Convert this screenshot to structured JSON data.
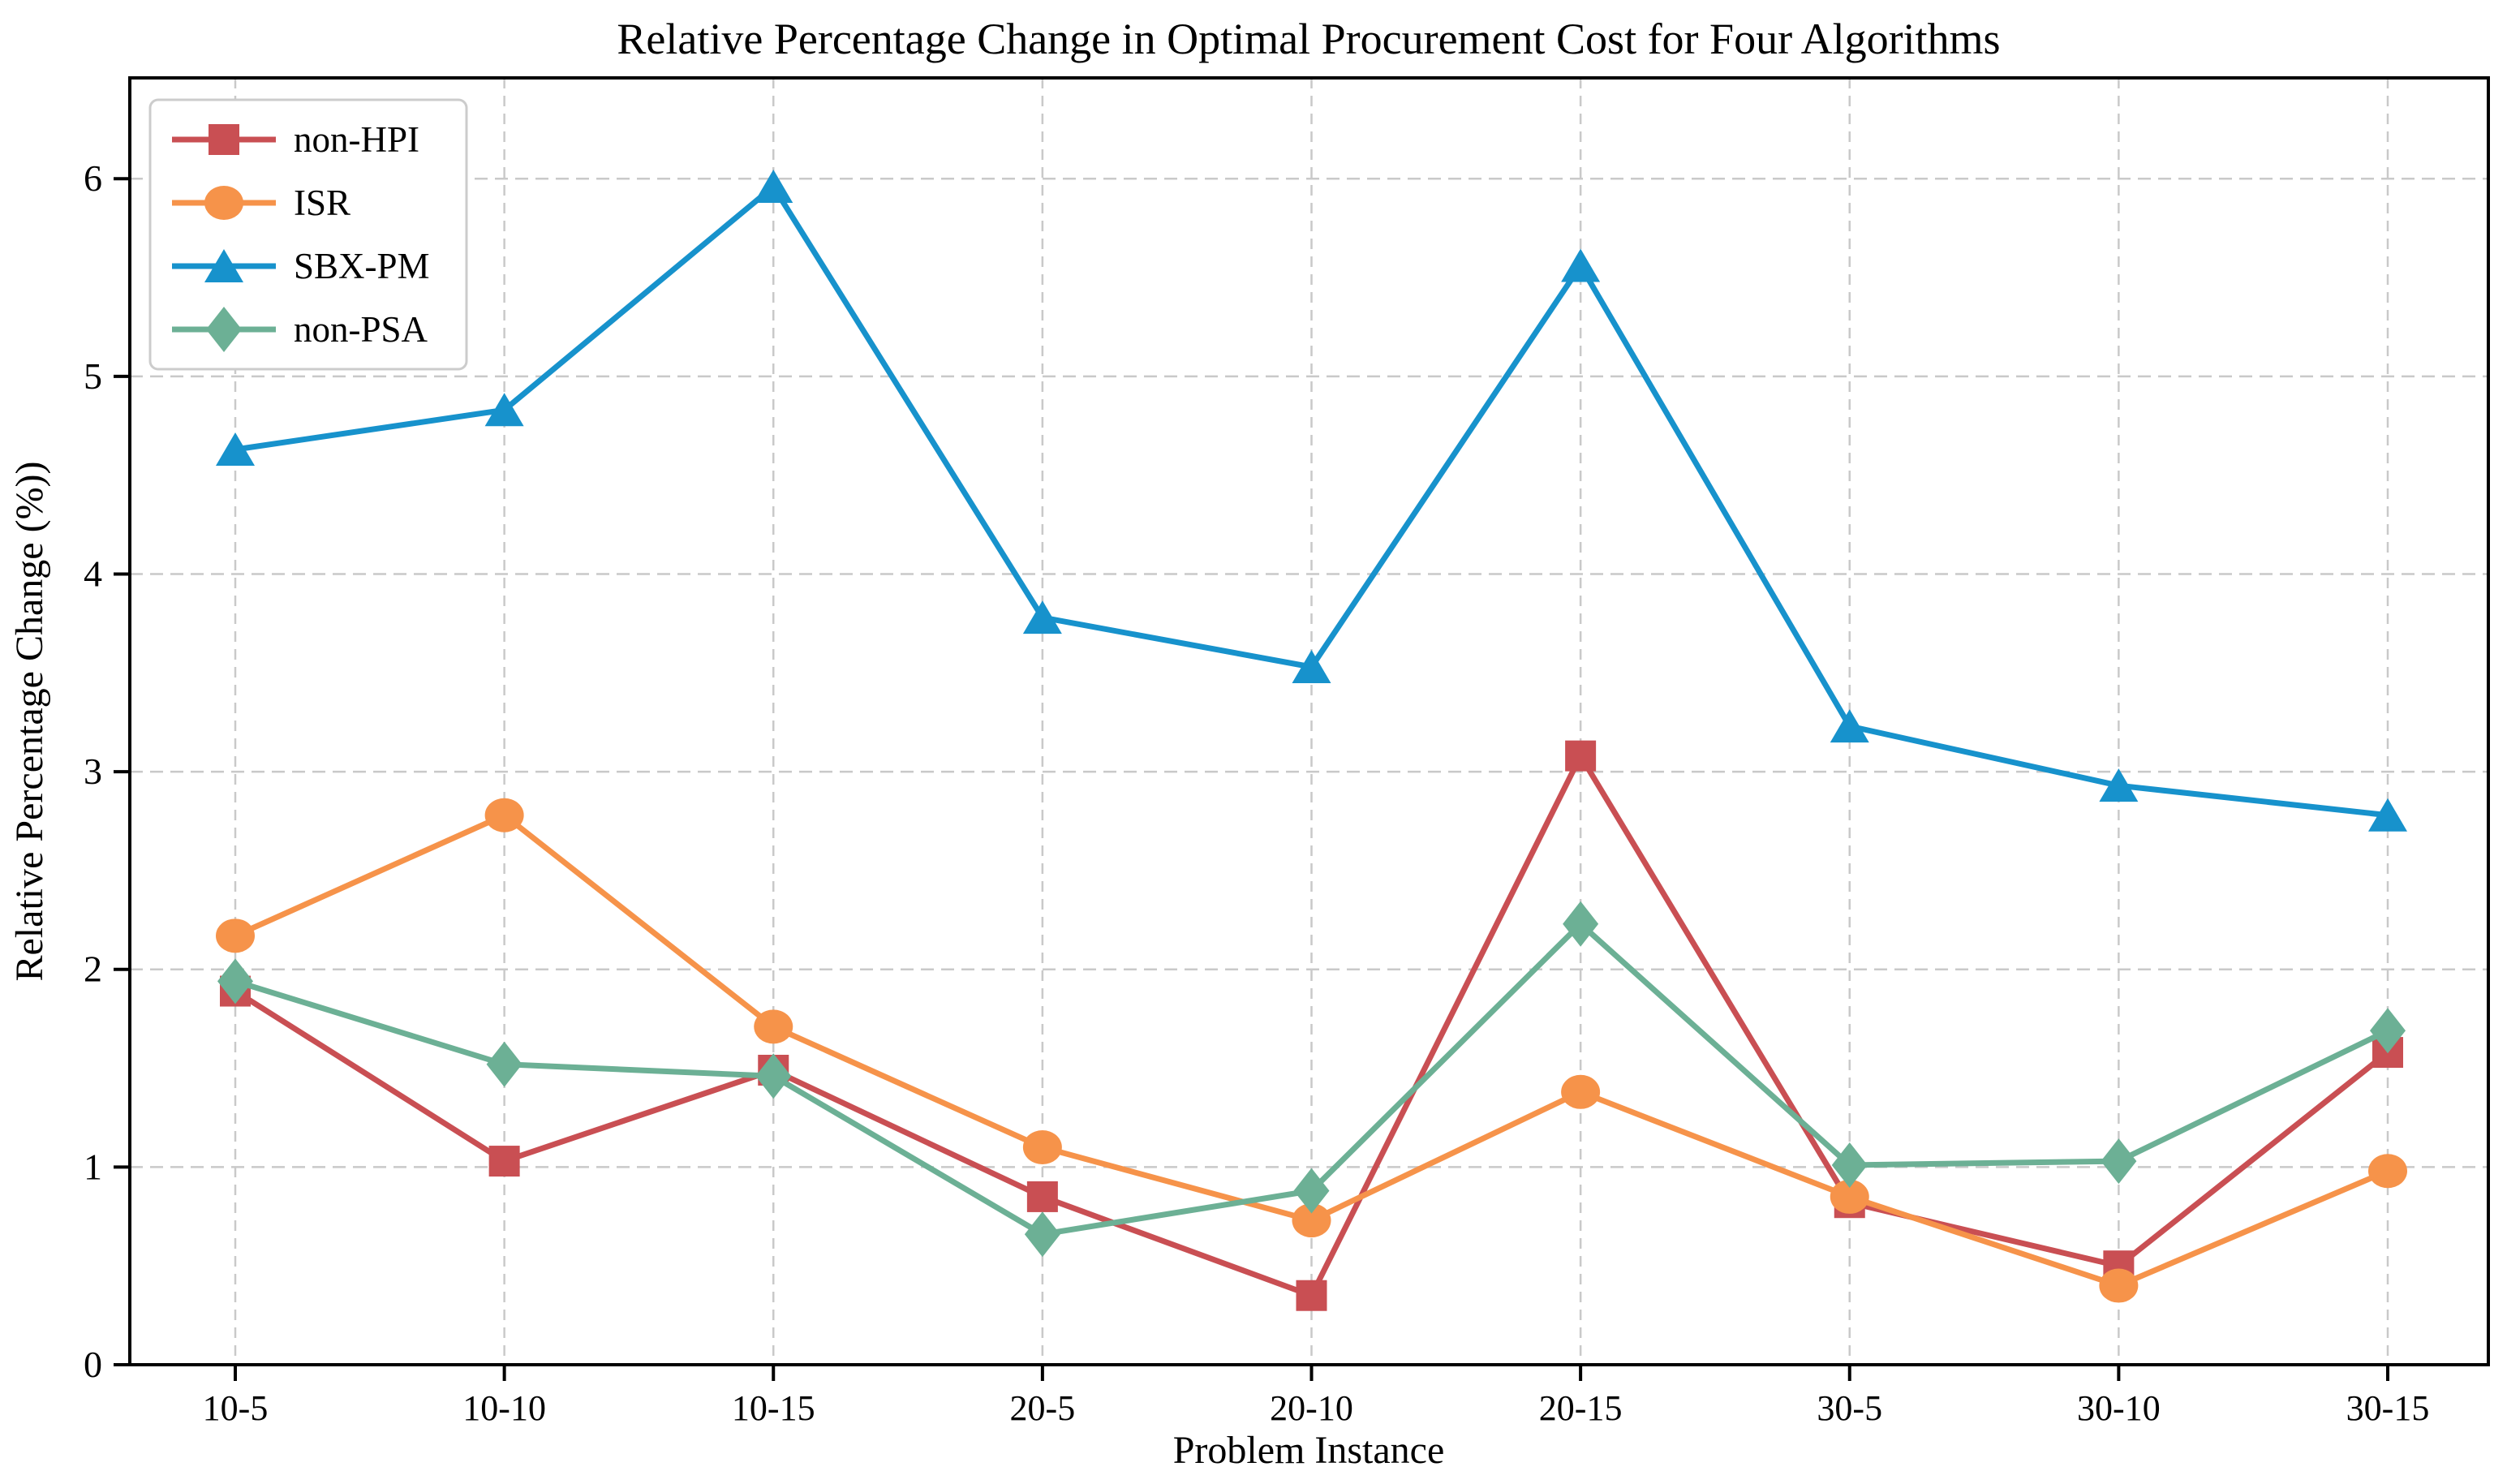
{
  "title": "Relative Percentage Change in Optimal Procurement Cost for Four Algorithms",
  "chart_data": {
    "type": "line",
    "title": "Relative Percentage Change in Optimal Procurement Cost for Four Algorithms",
    "xlabel": "Problem Instance",
    "ylabel": "Relative Percentage Change (%))",
    "categories": [
      "10-5",
      "10-10",
      "10-15",
      "20-5",
      "20-10",
      "20-15",
      "30-5",
      "30-10",
      "30-15"
    ],
    "y_ticks": [
      0,
      1,
      2,
      3,
      4,
      5,
      6
    ],
    "ylim": [
      0,
      6.51
    ],
    "grid": "dashed",
    "legend_position": "upper left",
    "colors": {
      "non_hpi": "#C94F53",
      "isr": "#F6934A",
      "sbx_pm": "#1792CC",
      "non_psa": "#6CB095",
      "grid_line": "#C9C9C9",
      "frame": "#000000",
      "legend_border": "#CCCCCC"
    },
    "series": [
      {
        "name": "non-HPI",
        "marker": "square",
        "color": "#C94F53",
        "values": [
          1.89,
          1.03,
          1.49,
          0.85,
          0.35,
          3.08,
          0.82,
          0.5,
          1.58
        ]
      },
      {
        "name": "ISR",
        "marker": "circle",
        "color": "#F6934A",
        "values": [
          2.17,
          2.78,
          1.71,
          1.1,
          0.73,
          1.38,
          0.85,
          0.4,
          0.98
        ]
      },
      {
        "name": "SBX-PM",
        "marker": "triangle",
        "color": "#1792CC",
        "values": [
          4.63,
          4.83,
          5.96,
          3.78,
          3.53,
          5.56,
          3.23,
          2.93,
          2.78
        ]
      },
      {
        "name": "non-PSA",
        "marker": "diamond",
        "color": "#6CB095",
        "values": [
          1.94,
          1.52,
          1.46,
          0.66,
          0.88,
          2.23,
          1.01,
          1.03,
          1.69
        ]
      }
    ]
  }
}
